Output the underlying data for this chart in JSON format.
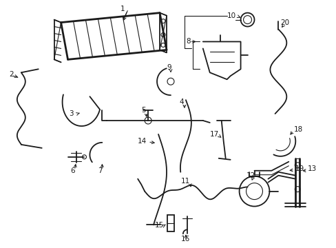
{
  "bg_color": "#ffffff",
  "line_color": "#1a1a1a",
  "lw_thin": 0.8,
  "lw_med": 1.3,
  "lw_thick": 2.0,
  "label_fontsize": 7.5,
  "fig_width": 4.89,
  "fig_height": 3.6,
  "dpi": 100
}
